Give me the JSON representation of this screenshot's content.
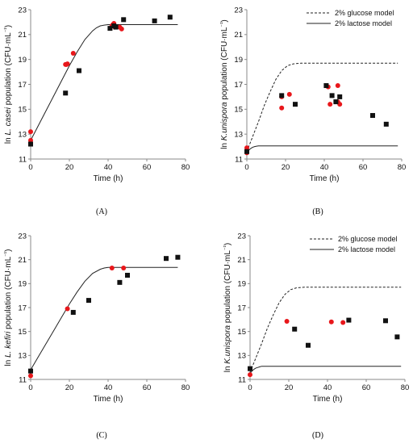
{
  "chart_data": [
    {
      "panel": "(A)",
      "type": "scatter",
      "xlabel": "Time (h)",
      "ylabel_parts": [
        "ln ",
        "L. casei",
        " population (CFU·mL",
        "⁻¹",
        ")"
      ],
      "xlim": [
        0,
        80
      ],
      "ylim": [
        11,
        23
      ],
      "xticks": [
        0,
        20,
        40,
        60,
        80
      ],
      "yticks": [
        11,
        13,
        15,
        17,
        19,
        21,
        23
      ],
      "grid": false,
      "series": [
        {
          "marker": "circle",
          "color": "#e8171b",
          "x": [
            0,
            0,
            0,
            18,
            18.5,
            19,
            22,
            42,
            42.5,
            43,
            43.5,
            46,
            47
          ],
          "y": [
            12.5,
            12.3,
            13.2,
            18.6,
            18.6,
            18.65,
            19.5,
            21.7,
            21.8,
            21.9,
            21.6,
            21.6,
            21.45
          ]
        },
        {
          "marker": "square",
          "color": "#111111",
          "x": [
            0,
            18,
            25,
            41,
            43,
            44,
            48,
            64,
            72
          ],
          "y": [
            12.2,
            16.3,
            18.1,
            21.5,
            21.7,
            21.6,
            22.2,
            22.1,
            22.4
          ]
        },
        {
          "line": "solid",
          "color": "#222222",
          "x": [
            0,
            4,
            8,
            12,
            16,
            20,
            24,
            28,
            32,
            34,
            36,
            38,
            40,
            44,
            50,
            60,
            70,
            76
          ],
          "y": [
            12.5,
            13.7,
            14.9,
            16.1,
            17.3,
            18.5,
            19.6,
            20.6,
            21.3,
            21.55,
            21.7,
            21.76,
            21.8,
            21.8,
            21.8,
            21.8,
            21.8,
            21.8
          ]
        }
      ]
    },
    {
      "panel": "(B)",
      "type": "scatter",
      "xlabel": "Time (h)",
      "ylabel_parts": [
        "ln ",
        "K.unispora",
        " population (CFU·mL",
        "⁻¹",
        ")"
      ],
      "xlim": [
        0,
        80
      ],
      "ylim": [
        11,
        23
      ],
      "xticks": [
        0,
        20,
        40,
        60,
        80
      ],
      "yticks": [
        11,
        13,
        15,
        17,
        19,
        21,
        23
      ],
      "grid": false,
      "legend": {
        "position": "top-right",
        "entries": [
          {
            "label": "2% glucose model",
            "style": "dashed"
          },
          {
            "label": "2% lactose model",
            "style": "solid"
          }
        ]
      },
      "series": [
        {
          "marker": "circle",
          "color": "#e8171b",
          "x": [
            0,
            0,
            0,
            18,
            18,
            22,
            42,
            43,
            47,
            47,
            48
          ],
          "y": [
            11.6,
            11.9,
            11.5,
            16.0,
            15.1,
            16.2,
            16.8,
            15.4,
            16.9,
            15.6,
            15.4
          ]
        },
        {
          "marker": "square",
          "color": "#111111",
          "x": [
            0,
            18,
            25,
            41,
            44,
            46,
            48,
            65,
            72
          ],
          "y": [
            11.6,
            16.1,
            15.4,
            16.9,
            16.1,
            15.6,
            16.0,
            14.5,
            13.8
          ]
        },
        {
          "name": "2% glucose model",
          "line": "dashed",
          "color": "#222222",
          "x": [
            0,
            3,
            6,
            9,
            12,
            15,
            18,
            21,
            24,
            28,
            32,
            40,
            50,
            60,
            70,
            78
          ],
          "y": [
            11.6,
            12.8,
            14.0,
            15.3,
            16.4,
            17.4,
            18.1,
            18.5,
            18.65,
            18.7,
            18.7,
            18.7,
            18.7,
            18.7,
            18.7,
            18.7
          ]
        },
        {
          "name": "2% lactose model",
          "line": "solid",
          "color": "#222222",
          "x": [
            0,
            1,
            2,
            3,
            4,
            5,
            6,
            8,
            10,
            20,
            40,
            60,
            78
          ],
          "y": [
            11.5,
            11.7,
            11.85,
            11.95,
            12.0,
            12.03,
            12.05,
            12.05,
            12.05,
            12.05,
            12.05,
            12.05,
            12.05
          ]
        }
      ]
    },
    {
      "panel": "(C)",
      "type": "scatter",
      "xlabel": "Time (h)",
      "ylabel_parts": [
        "ln ",
        "L. kefiri",
        " population (CFU·mL",
        "⁻¹",
        ")"
      ],
      "xlim": [
        0,
        80
      ],
      "ylim": [
        11,
        23
      ],
      "xticks": [
        0,
        20,
        40,
        60,
        80
      ],
      "yticks": [
        11,
        13,
        15,
        17,
        19,
        21,
        23
      ],
      "grid": false,
      "series": [
        {
          "marker": "circle",
          "color": "#e8171b",
          "x": [
            0,
            19,
            42,
            48
          ],
          "y": [
            11.3,
            16.9,
            20.3,
            20.3
          ]
        },
        {
          "marker": "square",
          "color": "#111111",
          "x": [
            0,
            22,
            30,
            46,
            50,
            70,
            76
          ],
          "y": [
            11.7,
            16.6,
            17.6,
            19.1,
            19.7,
            21.1,
            21.2
          ]
        },
        {
          "line": "solid",
          "color": "#222222",
          "x": [
            0,
            4,
            8,
            12,
            16,
            20,
            24,
            28,
            32,
            36,
            38,
            40,
            44,
            50,
            60,
            70,
            76
          ],
          "y": [
            11.8,
            12.9,
            14.0,
            15.1,
            16.2,
            17.3,
            18.3,
            19.2,
            19.85,
            20.2,
            20.3,
            20.35,
            20.35,
            20.35,
            20.35,
            20.35,
            20.35
          ]
        }
      ]
    },
    {
      "panel": "(D)",
      "type": "scatter",
      "xlabel": "Time (h)",
      "ylabel_parts": [
        "ln ",
        "K.unispora",
        " population (CFU·mL",
        "⁻¹",
        ")"
      ],
      "xlim": [
        0,
        80
      ],
      "ylim": [
        11,
        23
      ],
      "xticks": [
        0,
        20,
        40,
        60,
        80
      ],
      "yticks": [
        11,
        13,
        15,
        17,
        19,
        21,
        23
      ],
      "grid": false,
      "legend": {
        "position": "top-right",
        "entries": [
          {
            "label": "2% glucose model",
            "style": "dashed"
          },
          {
            "label": "2% lactose model",
            "style": "solid"
          }
        ]
      },
      "series": [
        {
          "marker": "circle",
          "color": "#e8171b",
          "x": [
            0,
            19,
            42,
            48
          ],
          "y": [
            11.4,
            15.85,
            15.8,
            15.75
          ]
        },
        {
          "marker": "square",
          "color": "#111111",
          "x": [
            0,
            23,
            30,
            51,
            70,
            76
          ],
          "y": [
            11.9,
            15.2,
            13.85,
            15.95,
            15.9,
            14.55
          ]
        },
        {
          "name": "2% glucose model",
          "line": "dashed",
          "color": "#222222",
          "x": [
            0,
            3,
            6,
            9,
            12,
            15,
            18,
            21,
            24,
            28,
            32,
            40,
            50,
            60,
            70,
            78
          ],
          "y": [
            11.6,
            12.8,
            14.0,
            15.3,
            16.4,
            17.4,
            18.1,
            18.5,
            18.65,
            18.7,
            18.7,
            18.7,
            18.7,
            18.7,
            18.7,
            18.7
          ]
        },
        {
          "name": "2% lactose model",
          "line": "solid",
          "color": "#222222",
          "x": [
            0,
            1,
            2,
            3,
            4,
            5,
            6,
            8,
            10,
            20,
            40,
            60,
            78
          ],
          "y": [
            11.5,
            11.7,
            11.85,
            11.95,
            12.0,
            12.05,
            12.1,
            12.1,
            12.1,
            12.1,
            12.1,
            12.1,
            12.1
          ]
        }
      ]
    }
  ]
}
